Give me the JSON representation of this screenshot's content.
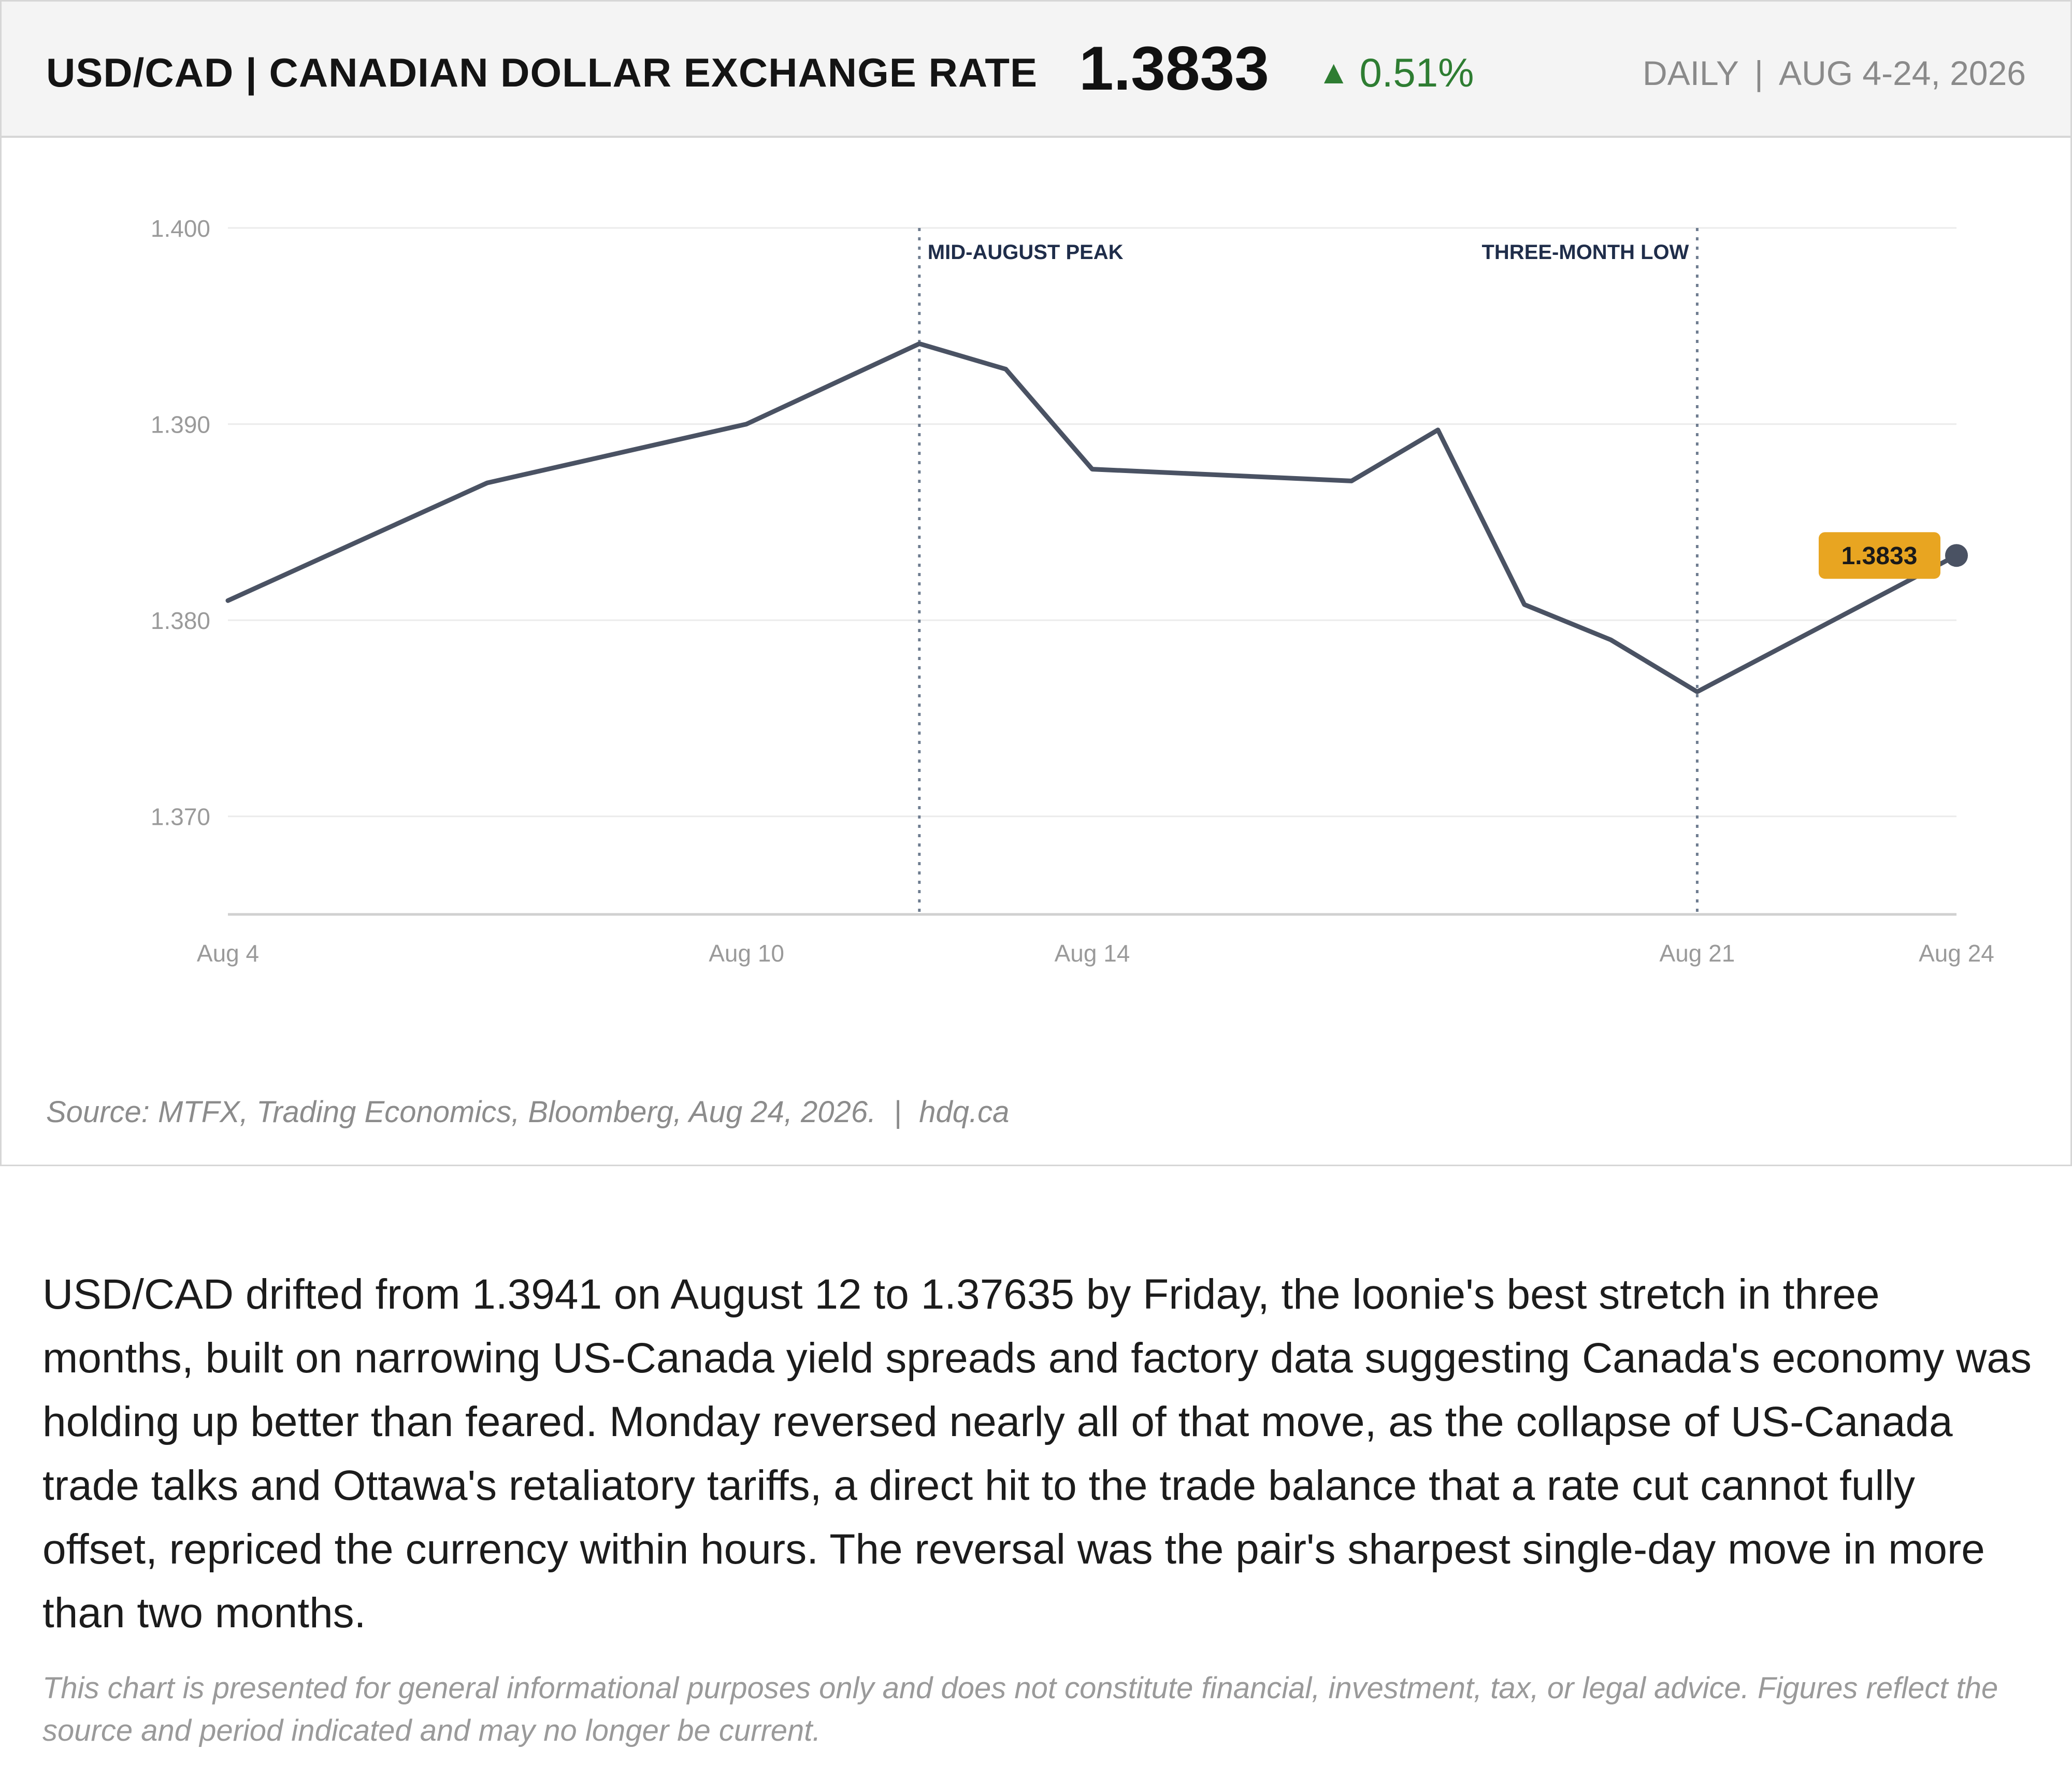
{
  "header": {
    "title": "USD/CAD | CANADIAN DOLLAR EXCHANGE RATE",
    "price": "1.3833",
    "change_arrow": "▲",
    "change": "0.51%",
    "frequency": "DAILY",
    "separator": "|",
    "period": "AUG 4-24, 2026"
  },
  "source": {
    "text": "Source: MTFX, Trading Economics, Bloomberg, Aug 24, 2026.",
    "separator": "|",
    "site": "hdq.ca"
  },
  "commentary": "USD/CAD drifted from 1.3941 on August 12 to 1.37635 by Friday, the loonie's best stretch in three months, built on narrowing US-Canada yield spreads and factory data suggesting Canada's economy was holding up better than feared. Monday reversed nearly all of that move, as the collapse of US-Canada trade talks and Ottawa's retaliatory tariffs, a direct hit to the trade balance that a rate cut cannot fully offset, repriced the currency within hours. The reversal was the pair's sharpest single-day move in more than two months.",
  "disclaimer": "This chart is presented for general informational purposes only and does not constitute financial, investment, tax, or legal advice. Figures reflect the source and period indicated and may no longer be current.",
  "colors": {
    "line": "#4a5263",
    "gain": "#2e7d32",
    "callout": "#e8a521",
    "annotation_text": "#1f2d4a",
    "annotation_line": "#6f7d90",
    "grid": "#ebebeb",
    "tick": "#9a9a9a"
  },
  "chart_data": {
    "type": "line",
    "title": "",
    "xlabel": "",
    "ylabel": "",
    "x": [
      "2026-08-04",
      "2026-08-07",
      "2026-08-10",
      "2026-08-12",
      "2026-08-13",
      "2026-08-14",
      "2026-08-17",
      "2026-08-18",
      "2026-08-19",
      "2026-08-20",
      "2026-08-21",
      "2026-08-24"
    ],
    "series": [
      {
        "values": [
          1.381,
          1.387,
          1.39,
          1.3941,
          1.3928,
          1.3877,
          1.3871,
          1.3897,
          1.3808,
          1.379,
          1.37635,
          1.3833
        ]
      }
    ],
    "ylim": [
      1.365,
      1.4
    ],
    "yticks": [
      1.4,
      1.39,
      1.38,
      1.37
    ],
    "ytick_labels": [
      "1.400",
      "1.390",
      "1.380",
      "1.370"
    ],
    "xticks": [
      {
        "x": "2026-08-04",
        "label": "Aug 4"
      },
      {
        "x": "2026-08-10",
        "label": "Aug 10"
      },
      {
        "x": "2026-08-14",
        "label": "Aug 14"
      },
      {
        "x": "2026-08-21",
        "label": "Aug 21"
      },
      {
        "x": "2026-08-24",
        "label": "Aug 24"
      }
    ],
    "annotations": [
      {
        "x": "2026-08-12",
        "label": "MID-AUGUST PEAK",
        "align": "right"
      },
      {
        "x": "2026-08-21",
        "label": "THREE-MONTH LOW",
        "align": "left"
      }
    ],
    "last_value_label": "1.3833",
    "grid": true,
    "legend": "none"
  }
}
